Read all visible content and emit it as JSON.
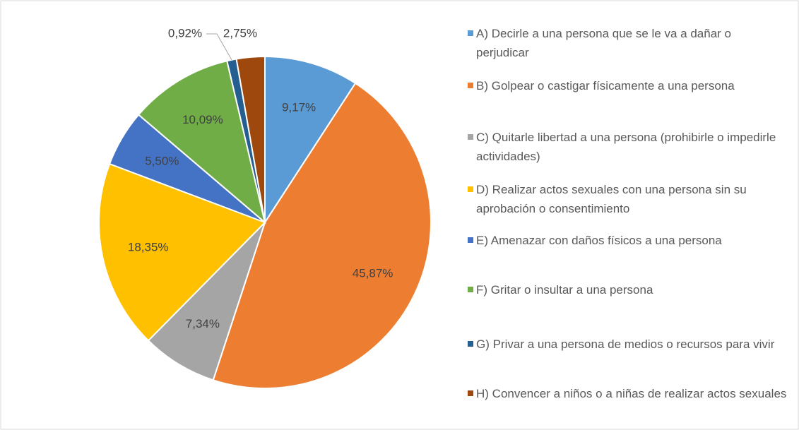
{
  "chart_data": {
    "type": "pie",
    "categories": [
      "A) Decirle a una persona que se le va a dañar o perjudicar",
      "B) Golpear o castigar físicamente a una persona",
      "C) Quitarle libertad a una persona (prohibirle o impedirle actividades)",
      "D) Realizar actos sexuales con una persona sin su aprobación o consentimiento",
      "E) Amenazar con daños físicos a una persona",
      "F) Gritar o insultar a una persona",
      "G) Privar a una persona de medios o recursos para vivir",
      "H) Convencer a niños o a niñas de realizar actos sexuales"
    ],
    "values": [
      9.17,
      45.87,
      7.34,
      18.35,
      5.5,
      10.09,
      0.92,
      2.75
    ],
    "value_labels": [
      "9,17%",
      "45,87%",
      "7,34%",
      "18,35%",
      "5,50%",
      "10,09%",
      "0,92%",
      "2,75%"
    ],
    "colors": [
      "#5b9bd5",
      "#ed7d31",
      "#a5a5a5",
      "#ffc000",
      "#4472c4",
      "#70ad47",
      "#255e91",
      "#9e480e"
    ],
    "legend": "right"
  }
}
